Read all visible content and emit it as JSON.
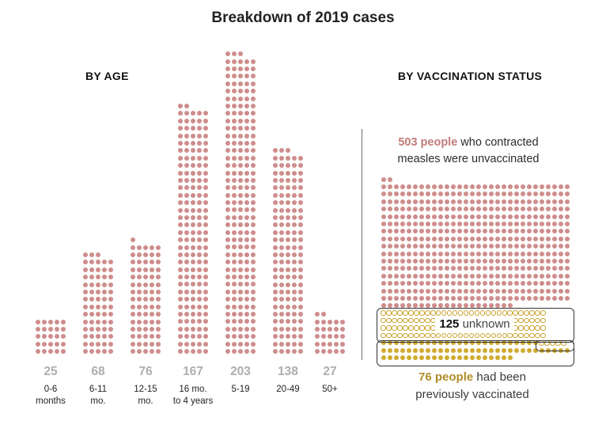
{
  "title": "Breakdown of 2019 cases",
  "by_age": {
    "header": "BY AGE",
    "columns": [
      {
        "value": 25,
        "label_lines": [
          "0-6",
          "months"
        ]
      },
      {
        "value": 68,
        "label_lines": [
          "6-11",
          "mo."
        ]
      },
      {
        "value": 76,
        "label_lines": [
          "12-15",
          "mo."
        ]
      },
      {
        "value": 167,
        "label_lines": [
          "16 mo.",
          "to 4 years"
        ]
      },
      {
        "value": 203,
        "label_lines": [
          "5-19"
        ]
      },
      {
        "value": 138,
        "label_lines": [
          "20-49"
        ]
      },
      {
        "value": 27,
        "label_lines": [
          "50+"
        ]
      }
    ]
  },
  "by_vaccination": {
    "header": "BY VACCINATION STATUS",
    "unvaccinated": {
      "count": 503,
      "top_partial_dots": 2,
      "bold_text": "503 people",
      "rest_text": " who contracted measles were unvaccinated"
    },
    "unknown": {
      "count": 125,
      "tab_circles": 5,
      "bold_text": "125",
      "rest_text": " unknown"
    },
    "vaccinated": {
      "count": 76,
      "bold_text": "76 people",
      "rest_text": " had been previously vaccinated"
    }
  },
  "colors": {
    "case_dot_pink": "#ce8d8b",
    "vaccinated_dot_yellow": "#d0ab30",
    "unknown_ring_yellow": "#c8a22c",
    "count_number_gray": "#aeaeae",
    "unvaccinated_text_accent": "#c17c79",
    "vaccinated_text_accent": "#af8d29",
    "region_border": "#333333",
    "divider_gray": "#6e6e6e"
  },
  "chart_data": [
    {
      "type": "bar",
      "variant": "dot-matrix-columns",
      "title": "BY AGE",
      "categories": [
        "0-6 months",
        "6-11 mo.",
        "12-15 mo.",
        "16 mo. to 4 years",
        "5-19",
        "20-49",
        "50+"
      ],
      "values": [
        25,
        68,
        76,
        167,
        203,
        138,
        27
      ],
      "dots_per_row": 5,
      "data_labels_shown": [
        25,
        68,
        76,
        167,
        203,
        138,
        27
      ],
      "grid": "off",
      "axes": "none",
      "dot_color": "#ce8d8b"
    },
    {
      "type": "bar",
      "variant": "waffle-dot-grid",
      "title": "BY VACCINATION STATUS",
      "categories": [
        "unvaccinated",
        "unknown",
        "previously vaccinated"
      ],
      "values": [
        503,
        125,
        76
      ],
      "columns_per_row": 30,
      "annotations": [
        "503 people who contracted measles were unvaccinated",
        "125 unknown",
        "76 people had been previously vaccinated"
      ],
      "grid": "off",
      "axes": "none",
      "series_colors": [
        "#ce8d8b",
        "#c8a22c",
        "#d0ab30"
      ]
    }
  ]
}
